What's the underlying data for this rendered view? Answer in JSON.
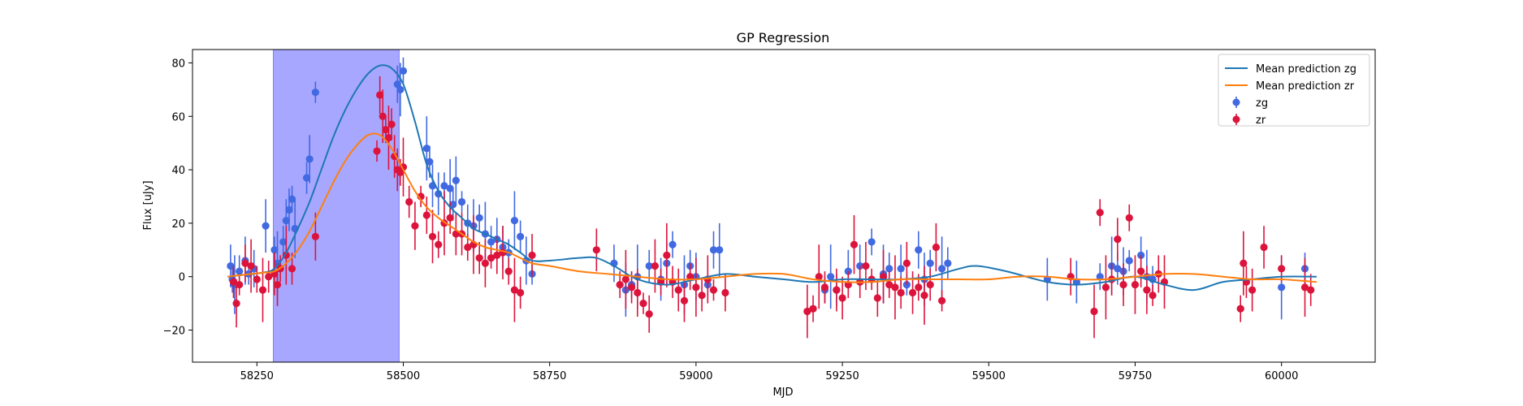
{
  "chart_data": {
    "type": "scatter",
    "title": "GP Regression",
    "xlabel": "MJD",
    "ylabel": "Flux [uJy]",
    "xlim": [
      58140,
      60160
    ],
    "ylim": [
      -32,
      85
    ],
    "xticks": [
      58250,
      58500,
      58750,
      59000,
      59250,
      59500,
      59750,
      60000
    ],
    "yticks": [
      -20,
      0,
      20,
      40,
      60,
      80
    ],
    "grid": false,
    "legend_position": "top-right",
    "shaded_region": {
      "x_start": 58278,
      "x_end": 58493,
      "color": "#a7a7ff"
    },
    "lines": [
      {
        "name": "Mean prediction zg",
        "color": "#1f77b4",
        "x": [
          58200,
          58220,
          58240,
          58260,
          58280,
          58300,
          58320,
          58340,
          58360,
          58380,
          58400,
          58420,
          58440,
          58460,
          58480,
          58500,
          58520,
          58540,
          58560,
          58580,
          58600,
          58620,
          58640,
          58660,
          58680,
          58700,
          58720,
          58750,
          58800,
          58830,
          58860,
          58900,
          58950,
          59000,
          59050,
          59100,
          59150,
          59200,
          59250,
          59300,
          59350,
          59400,
          59450,
          59480,
          59530,
          59600,
          59650,
          59700,
          59750,
          59800,
          59850,
          59900,
          59950,
          60000,
          60060
        ],
        "y": [
          0,
          0.5,
          1,
          1.5,
          3,
          9,
          18,
          28,
          40,
          52,
          62,
          70,
          76,
          79,
          78,
          72,
          58,
          42,
          32,
          26,
          22,
          18,
          16,
          14,
          12,
          9,
          6,
          6,
          7,
          7,
          4,
          -1,
          -3,
          -1,
          1,
          0,
          -1,
          -2,
          -1,
          -1,
          -1,
          0,
          3,
          4,
          2,
          -2,
          -3,
          -2,
          0,
          -3,
          -5,
          -2,
          -1,
          0,
          0
        ]
      },
      {
        "name": "Mean prediction zr",
        "color": "#ff7f0e",
        "x": [
          58200,
          58220,
          58240,
          58260,
          58280,
          58300,
          58320,
          58340,
          58360,
          58380,
          58400,
          58420,
          58440,
          58460,
          58480,
          58500,
          58520,
          58540,
          58560,
          58580,
          58600,
          58620,
          58640,
          58660,
          58680,
          58700,
          58720,
          58750,
          58800,
          58850,
          58900,
          58950,
          59000,
          59050,
          59100,
          59150,
          59200,
          59250,
          59300,
          59350,
          59400,
          59450,
          59500,
          59550,
          59600,
          59650,
          59700,
          59750,
          59800,
          59850,
          59900,
          59950,
          60000,
          60060
        ],
        "y": [
          0,
          0.5,
          1,
          1.5,
          2,
          5,
          10,
          17,
          26,
          35,
          43,
          49,
          53,
          53,
          48,
          40,
          32,
          26,
          22,
          19,
          16,
          13,
          11,
          10,
          9,
          7,
          5,
          4,
          2,
          1,
          0,
          -1,
          -1,
          0,
          1,
          1,
          -1,
          -2,
          -2,
          -1,
          -1,
          -1,
          -1,
          0,
          0,
          -1,
          -1,
          0,
          1,
          1,
          0,
          -1,
          -1,
          -2
        ]
      }
    ],
    "series": [
      {
        "name": "zg",
        "color": "#4169e1",
        "x": [
          58205,
          58208,
          58212,
          58220,
          58230,
          58236,
          58245,
          58265,
          58280,
          58285,
          58295,
          58300,
          58305,
          58310,
          58315,
          58335,
          58340,
          58350,
          58490,
          58495,
          58500,
          58540,
          58545,
          58550,
          58560,
          58570,
          58580,
          58585,
          58590,
          58600,
          58610,
          58620,
          58630,
          58640,
          58650,
          58660,
          58670,
          58680,
          58690,
          58700,
          58710,
          58720,
          58860,
          58880,
          58890,
          58900,
          58920,
          58940,
          58950,
          58960,
          58980,
          58990,
          59000,
          59020,
          59030,
          59040,
          59220,
          59230,
          59240,
          59260,
          59280,
          59300,
          59320,
          59330,
          59350,
          59360,
          59380,
          59390,
          59400,
          59420,
          59430,
          59600,
          59650,
          59690,
          59710,
          59720,
          59730,
          59740,
          59760,
          59770,
          59780,
          60000,
          60040
        ],
        "y": [
          4,
          -1,
          -3,
          2,
          6,
          1,
          3,
          19,
          10,
          5,
          13,
          21,
          25,
          29,
          18,
          37,
          44,
          69,
          72,
          70,
          77,
          48,
          43,
          34,
          31,
          34,
          33,
          27,
          36,
          28,
          20,
          19,
          22,
          16,
          13,
          14,
          11,
          9,
          21,
          15,
          6,
          1,
          5,
          -5,
          -3,
          0,
          4,
          -1,
          5,
          12,
          -3,
          4,
          0,
          -3,
          10,
          10,
          -5,
          0,
          -5,
          2,
          4,
          13,
          1,
          3,
          3,
          -3,
          10,
          -1,
          5,
          3,
          5,
          -1,
          -2,
          0,
          4,
          3,
          2,
          6,
          8,
          0,
          -1,
          -4,
          3
        ]
      },
      {
        "name": "zr",
        "color": "#dc143c",
        "x": [
          58210,
          58215,
          58220,
          58230,
          58240,
          58250,
          58260,
          58270,
          58280,
          58285,
          58290,
          58300,
          58310,
          58350,
          58455,
          58460,
          58465,
          58470,
          58475,
          58480,
          58485,
          58490,
          58495,
          58500,
          58510,
          58520,
          58530,
          58540,
          58550,
          58560,
          58570,
          58580,
          58590,
          58600,
          58610,
          58620,
          58630,
          58640,
          58650,
          58660,
          58670,
          58680,
          58690,
          58700,
          58720,
          58830,
          58870,
          58880,
          58890,
          58900,
          58910,
          58920,
          58930,
          58940,
          58950,
          58960,
          58970,
          58980,
          58990,
          59000,
          59010,
          59020,
          59030,
          59050,
          59190,
          59200,
          59210,
          59220,
          59240,
          59250,
          59260,
          59270,
          59280,
          59290,
          59300,
          59310,
          59320,
          59330,
          59340,
          59350,
          59360,
          59370,
          59380,
          59390,
          59400,
          59410,
          59420,
          59640,
          59680,
          59690,
          59700,
          59710,
          59720,
          59730,
          59740,
          59750,
          59760,
          59770,
          59780,
          59790,
          59800,
          59930,
          59935,
          59940,
          59950,
          59970,
          60000,
          60040,
          60050
        ],
        "y": [
          -2,
          -10,
          -3,
          5,
          4,
          -1,
          -5,
          0,
          1,
          -3,
          3,
          8,
          3,
          15,
          47,
          68,
          60,
          55,
          52,
          57,
          45,
          40,
          39,
          41,
          28,
          19,
          30,
          23,
          15,
          12,
          20,
          22,
          16,
          16,
          11,
          12,
          7,
          5,
          7,
          8,
          9,
          2,
          -5,
          -6,
          8,
          10,
          -3,
          -1,
          -4,
          -6,
          -10,
          -14,
          4,
          -2,
          8,
          -2,
          -5,
          -9,
          0,
          -4,
          -7,
          -1,
          -5,
          -6,
          -13,
          -12,
          0,
          -4,
          -5,
          -8,
          -3,
          12,
          -2,
          4,
          -1,
          -8,
          0,
          -3,
          -4,
          -6,
          5,
          -6,
          -4,
          -7,
          -3,
          11,
          -9,
          0,
          -13,
          24,
          -4,
          -1,
          14,
          -3,
          22,
          -3,
          2,
          -5,
          -7,
          1,
          -2,
          -12,
          5,
          -2,
          -5,
          11,
          3,
          -4,
          -5
        ]
      }
    ],
    "legend": [
      {
        "label": "Mean prediction zg",
        "kind": "line",
        "color": "#1f77b4"
      },
      {
        "label": "Mean prediction zr",
        "kind": "line",
        "color": "#ff7f0e"
      },
      {
        "label": "zg",
        "kind": "errorbar",
        "color": "#4169e1"
      },
      {
        "label": "zr",
        "kind": "errorbar",
        "color": "#dc143c"
      }
    ]
  }
}
